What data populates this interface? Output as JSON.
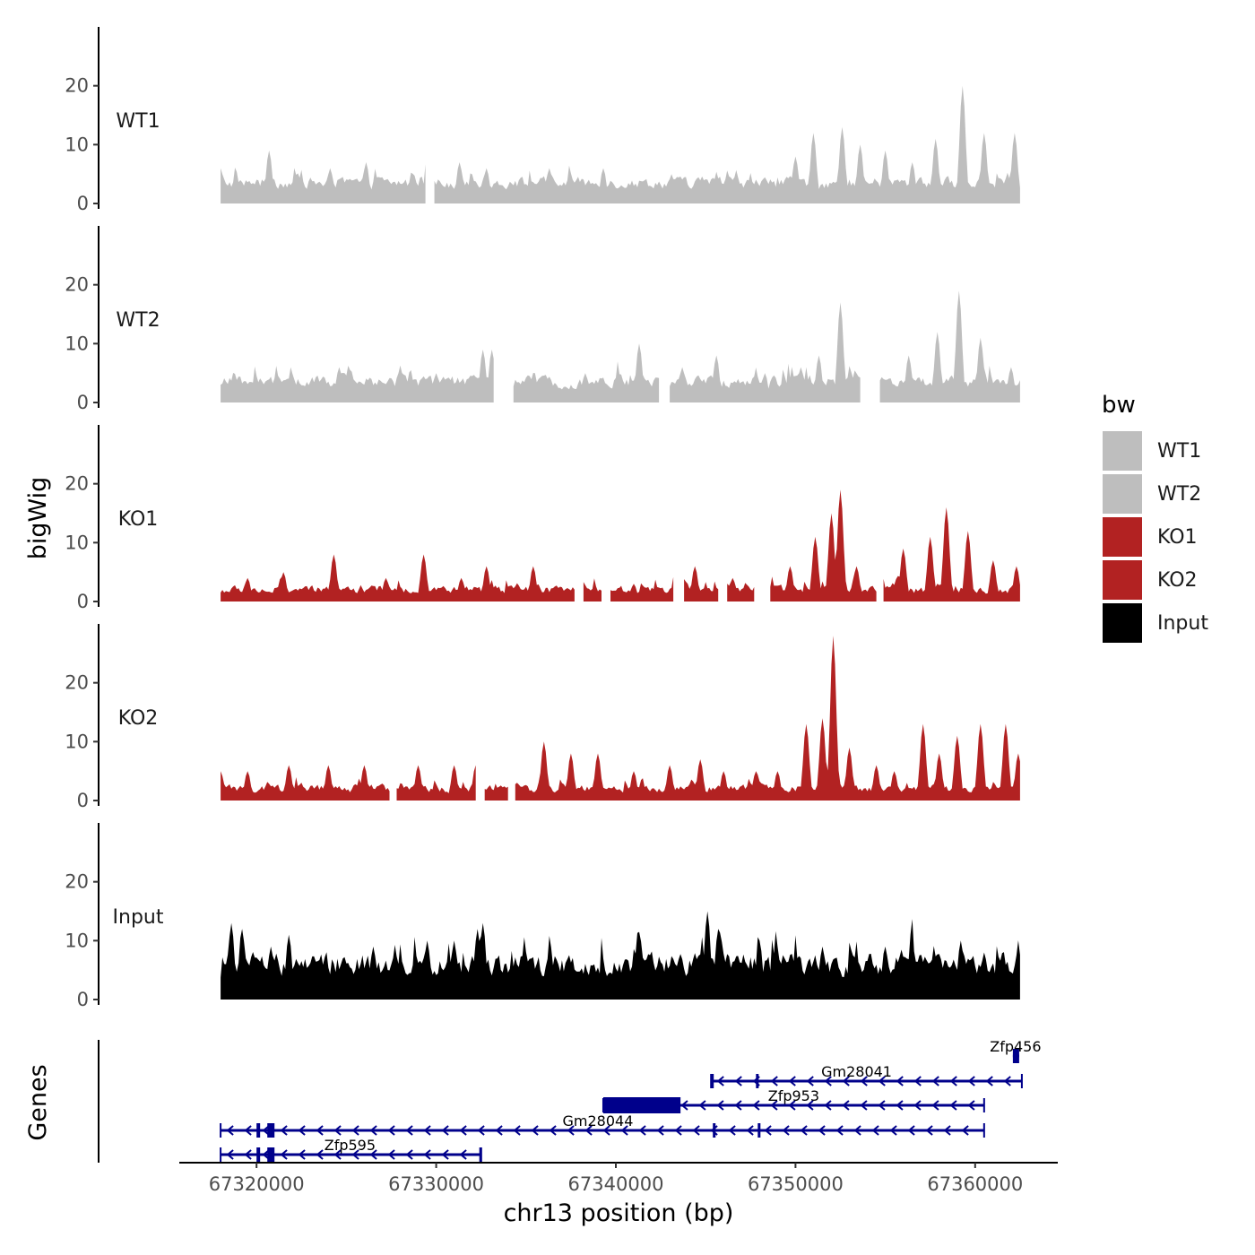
{
  "chart_data": {
    "type": "area",
    "title": "",
    "xlabel": "chr13 position (bp)",
    "ylabel": "bigWig",
    "xlim": [
      67315700,
      67364600
    ],
    "ylim": [
      0,
      30
    ],
    "data_x_range": [
      67318000,
      67362500
    ],
    "x_ticks": [
      67320000,
      67330000,
      67340000,
      67350000,
      67360000
    ],
    "x_tick_labels": [
      "67320000",
      "67330000",
      "67340000",
      "67350000",
      "67360000"
    ],
    "y_ticks": [
      0,
      10,
      20
    ],
    "y_tick_labels": [
      "0",
      "10",
      "20"
    ],
    "genes_track_label": "Genes",
    "legend": {
      "title": "bw",
      "position": "right",
      "entries": [
        {
          "label": "WT1",
          "color": "#bebebe"
        },
        {
          "label": "WT2",
          "color": "#bebebe"
        },
        {
          "label": "KO1",
          "color": "#b22222"
        },
        {
          "label": "KO2",
          "color": "#b22222"
        },
        {
          "label": "Input",
          "color": "#000000"
        }
      ]
    },
    "series": [
      {
        "name": "WT1",
        "color": "#bebebe",
        "background": [
          2,
          3
        ],
        "gaps": [
          [
            67329500,
            67329800
          ]
        ],
        "peaks": [
          [
            67318000,
            6
          ],
          [
            67320700,
            9
          ],
          [
            67324100,
            6
          ],
          [
            67326100,
            7
          ],
          [
            67331300,
            7
          ],
          [
            67332800,
            6
          ],
          [
            67336300,
            6
          ],
          [
            67339300,
            6
          ],
          [
            67343100,
            5
          ],
          [
            67345600,
            5
          ],
          [
            67350000,
            8
          ],
          [
            67351000,
            12
          ],
          [
            67352600,
            13
          ],
          [
            67353600,
            10
          ],
          [
            67355000,
            9
          ],
          [
            67356500,
            7
          ],
          [
            67357800,
            11
          ],
          [
            67359300,
            20
          ],
          [
            67360500,
            12
          ],
          [
            67362200,
            12
          ]
        ]
      },
      {
        "name": "WT2",
        "color": "#bebebe",
        "background": [
          2,
          3
        ],
        "gaps": [
          [
            67333300,
            67334200
          ],
          [
            67342500,
            67342900
          ],
          [
            67353700,
            67354600
          ]
        ],
        "peaks": [
          [
            67318000,
            3
          ],
          [
            67321700,
            4
          ],
          [
            67324600,
            6
          ],
          [
            67327900,
            5
          ],
          [
            67330000,
            5
          ],
          [
            67332600,
            9
          ],
          [
            67333100,
            9
          ],
          [
            67338300,
            5
          ],
          [
            67341300,
            10
          ],
          [
            67343700,
            6
          ],
          [
            67345600,
            8
          ],
          [
            67348300,
            5
          ],
          [
            67350300,
            6
          ],
          [
            67351300,
            8
          ],
          [
            67352500,
            17
          ],
          [
            67354000,
            6
          ],
          [
            67356300,
            8
          ],
          [
            67357900,
            12
          ],
          [
            67359100,
            19
          ],
          [
            67360300,
            11
          ],
          [
            67362000,
            6
          ]
        ]
      },
      {
        "name": "KO1",
        "color": "#b22222",
        "background": [
          1,
          2
        ],
        "gaps": [
          [
            67337800,
            67338100
          ],
          [
            67339300,
            67339600
          ],
          [
            67343300,
            67343700
          ],
          [
            67345800,
            67346100
          ],
          [
            67347800,
            67348500
          ],
          [
            67354600,
            67354800
          ]
        ],
        "peaks": [
          [
            67319500,
            4
          ],
          [
            67321500,
            5
          ],
          [
            67324300,
            8
          ],
          [
            67327200,
            4
          ],
          [
            67329300,
            8
          ],
          [
            67331400,
            4
          ],
          [
            67332800,
            6
          ],
          [
            67335400,
            6
          ],
          [
            67338100,
            4
          ],
          [
            67341000,
            3
          ],
          [
            67343300,
            5
          ],
          [
            67344400,
            6
          ],
          [
            67346500,
            4
          ],
          [
            67349700,
            6
          ],
          [
            67351100,
            11
          ],
          [
            67352000,
            15
          ],
          [
            67352500,
            19
          ],
          [
            67353400,
            6
          ],
          [
            67356000,
            9
          ],
          [
            67357500,
            11
          ],
          [
            67358400,
            16
          ],
          [
            67359600,
            12
          ],
          [
            67361000,
            7
          ],
          [
            67362300,
            6
          ]
        ]
      },
      {
        "name": "KO2",
        "color": "#b22222",
        "background": [
          1,
          2
        ],
        "gaps": [
          [
            67327500,
            67327700
          ],
          [
            67332300,
            67332600
          ],
          [
            67334100,
            67334300
          ]
        ],
        "peaks": [
          [
            67318000,
            5
          ],
          [
            67319500,
            5
          ],
          [
            67321800,
            6
          ],
          [
            67324000,
            6
          ],
          [
            67326000,
            6
          ],
          [
            67329000,
            6
          ],
          [
            67331000,
            6
          ],
          [
            67332200,
            6
          ],
          [
            67334500,
            3
          ],
          [
            67336000,
            10
          ],
          [
            67337500,
            8
          ],
          [
            67339000,
            8
          ],
          [
            67341000,
            5
          ],
          [
            67343000,
            6
          ],
          [
            67344700,
            7
          ],
          [
            67346000,
            5
          ],
          [
            67347800,
            5
          ],
          [
            67349000,
            5
          ],
          [
            67350600,
            13
          ],
          [
            67351500,
            14
          ],
          [
            67352100,
            28
          ],
          [
            67353000,
            9
          ],
          [
            67354500,
            6
          ],
          [
            67355500,
            5
          ],
          [
            67357100,
            13
          ],
          [
            67358000,
            8
          ],
          [
            67359000,
            11
          ],
          [
            67360300,
            13
          ],
          [
            67361700,
            13
          ],
          [
            67362400,
            8
          ]
        ]
      },
      {
        "name": "Input",
        "color": "#000000",
        "background": [
          3,
          6
        ],
        "gaps": [],
        "peaks": [
          [
            67318600,
            13
          ],
          [
            67319200,
            12
          ],
          [
            67320800,
            9
          ],
          [
            67321800,
            11
          ],
          [
            67326500,
            9
          ],
          [
            67329500,
            10
          ],
          [
            67331000,
            10
          ],
          [
            67332300,
            12
          ],
          [
            67332600,
            13
          ],
          [
            67345100,
            15
          ],
          [
            67345700,
            12
          ],
          [
            67348000,
            10
          ],
          [
            67351500,
            9
          ],
          [
            67355000,
            9
          ],
          [
            67359200,
            10
          ],
          [
            67360500,
            8
          ]
        ]
      }
    ],
    "genes": [
      {
        "name": "Zfp456",
        "start": 67362100,
        "end": 67362450,
        "strand": "-",
        "row": 0,
        "exons": [
          [
            67362100,
            67362450
          ]
        ],
        "label_x": 67362250
      },
      {
        "name": "Gm28041",
        "start": 67345300,
        "end": 67362600,
        "strand": "-",
        "row": 1,
        "exons": [
          [
            67345300,
            67345400
          ],
          [
            67347800,
            67347900
          ]
        ],
        "label_x": 67353400
      },
      {
        "name": "Zfp953",
        "start": 67339300,
        "end": 67360500,
        "strand": "-",
        "row": 2,
        "exons": [
          [
            67339300,
            67343600
          ]
        ],
        "label_x": 67349900
      },
      {
        "name": "Gm28044",
        "start": 67318000,
        "end": 67360500,
        "strand": "-",
        "row": 3,
        "exons": [
          [
            67320000,
            67320200
          ],
          [
            67320600,
            67321000
          ],
          [
            67345400,
            67345500
          ],
          [
            67347900,
            67348000
          ]
        ],
        "label_x": 67339000
      },
      {
        "name": "Zfp595",
        "start": 67318000,
        "end": 67332500,
        "strand": "-",
        "row": 4,
        "exons": [
          [
            67320000,
            67320200
          ],
          [
            67320600,
            67321000
          ],
          [
            67332400,
            67332550
          ]
        ],
        "label_x": 67325200
      }
    ],
    "gene_color": "#00008b"
  }
}
